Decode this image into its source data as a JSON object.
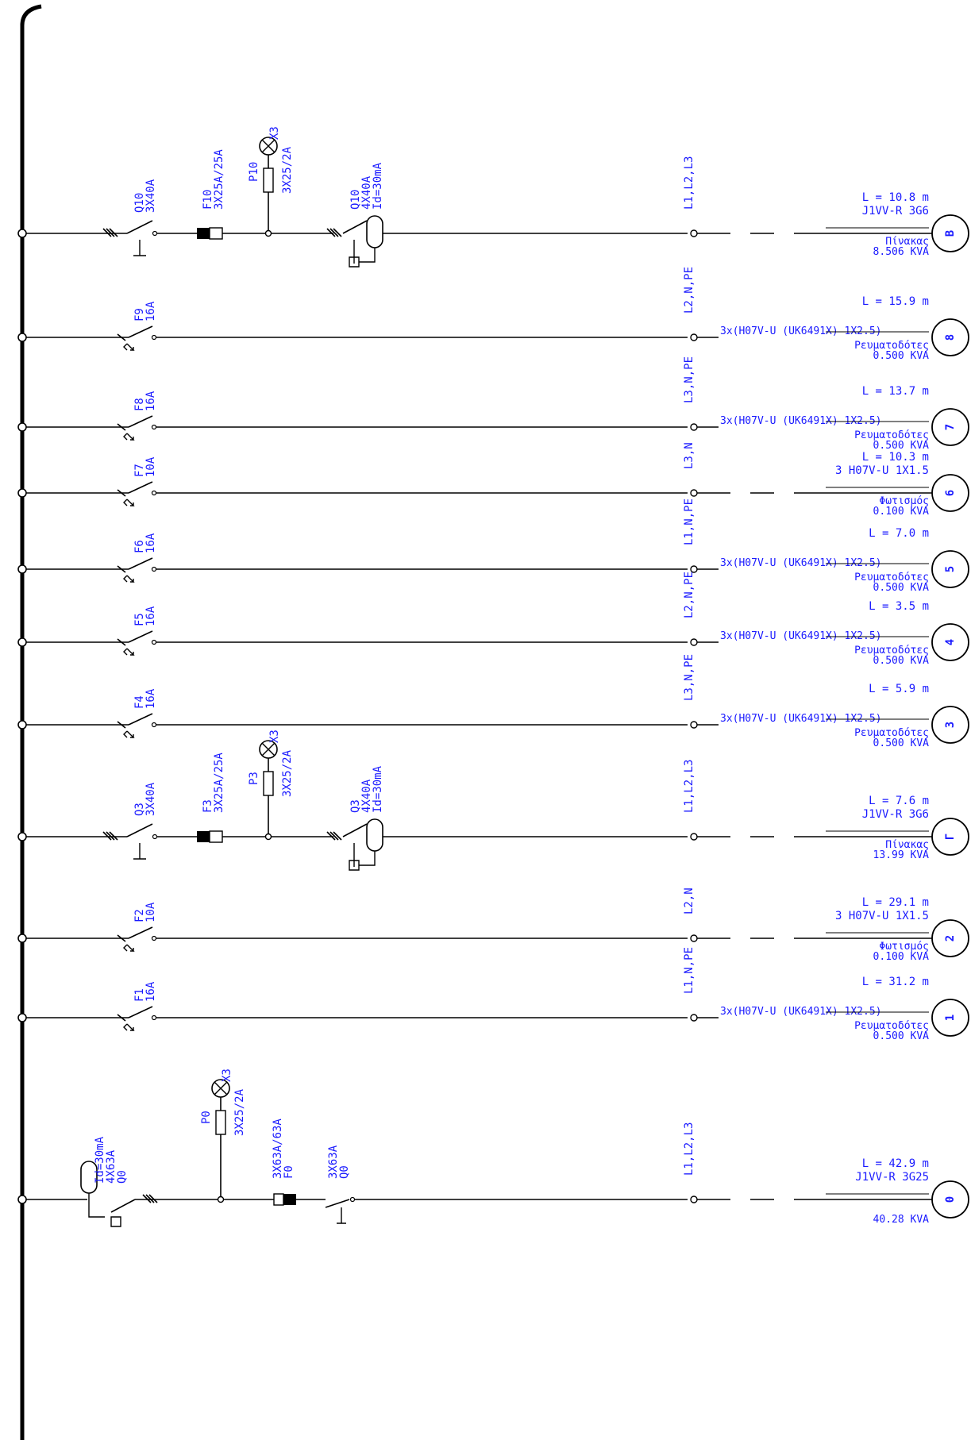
{
  "circuits": [
    {
      "id": "B",
      "type": "main",
      "phase": "L1,L2,L3",
      "breaker": {
        "name": "Q10",
        "rating": "3X40A"
      },
      "fuse": {
        "name": "F10",
        "rating": "3X25A/25A"
      },
      "pilot": {
        "name": "P10",
        "rating": "3X25/2A",
        "lamp": "X3"
      },
      "rcd": {
        "name": "Q10",
        "rating": "4X40A",
        "sens": "Id=30mA"
      },
      "length": "L = 10.8 m",
      "cable": "J1VV-R 3G6",
      "load": "Πίνακας",
      "power": "8.506 KVA"
    },
    {
      "id": "8",
      "type": "branch",
      "phase": "L2,N,PE",
      "breaker": {
        "name": "F9",
        "rating": "16A"
      },
      "length": "L = 15.9 m",
      "cable": "3x(H07V-U (UK6491X) 1X2.5)",
      "load": "Ρευματοδότες",
      "power": "0.500 KVA"
    },
    {
      "id": "7",
      "type": "branch",
      "phase": "L3,N,PE",
      "breaker": {
        "name": "F8",
        "rating": "16A"
      },
      "length": "L = 13.7 m",
      "cable": "3x(H07V-U (UK6491X) 1X2.5)",
      "load": "Ρευματοδότες",
      "power": "0.500 KVA"
    },
    {
      "id": "6",
      "type": "branch",
      "phase": "L3,N",
      "breaker": {
        "name": "F7",
        "rating": "10A"
      },
      "length": "L = 10.3 m",
      "cable": "3 H07V-U 1X1.5",
      "load": "Φωτισμός",
      "power": "0.100 KVA"
    },
    {
      "id": "5",
      "type": "branch",
      "phase": "L1,N,PE",
      "breaker": {
        "name": "F6",
        "rating": "16A"
      },
      "length": "L = 7.0 m",
      "cable": "3x(H07V-U (UK6491X) 1X2.5)",
      "load": "Ρευματοδότες",
      "power": "0.500 KVA"
    },
    {
      "id": "4",
      "type": "branch",
      "phase": "L2,N,PE",
      "breaker": {
        "name": "F5",
        "rating": "16A"
      },
      "length": "L = 3.5 m",
      "cable": "3x(H07V-U (UK6491X) 1X2.5)",
      "load": "Ρευματοδότες",
      "power": "0.500 KVA"
    },
    {
      "id": "3",
      "type": "branch",
      "phase": "L3,N,PE",
      "breaker": {
        "name": "F4",
        "rating": "16A"
      },
      "length": "L = 5.9 m",
      "cable": "3x(H07V-U (UK6491X) 1X2.5)",
      "load": "Ρευματοδότες",
      "power": "0.500 KVA"
    },
    {
      "id": "Γ",
      "type": "main",
      "phase": "L1,L2,L3",
      "breaker": {
        "name": "Q3",
        "rating": "3X40A"
      },
      "fuse": {
        "name": "F3",
        "rating": "3X25A/25A"
      },
      "pilot": {
        "name": "P3",
        "rating": "3X25/2A",
        "lamp": "X3"
      },
      "rcd": {
        "name": "Q3",
        "rating": "4X40A",
        "sens": "Id=30mA"
      },
      "length": "L = 7.6 m",
      "cable": "J1VV-R 3G6",
      "load": "Πίνακας",
      "power": "13.99 KVA"
    },
    {
      "id": "2",
      "type": "branch",
      "phase": "L2,N",
      "breaker": {
        "name": "F2",
        "rating": "10A"
      },
      "length": "L = 29.1 m",
      "cable": "3 H07V-U 1X1.5",
      "load": "Φωτισμός",
      "power": "0.100 KVA"
    },
    {
      "id": "1",
      "type": "branch",
      "phase": "L1,N,PE",
      "breaker": {
        "name": "F1",
        "rating": "16A"
      },
      "length": "L = 31.2 m",
      "cable": "3x(H07V-U (UK6491X) 1X2.5)",
      "load": "Ρευματοδότες",
      "power": "0.500 KVA"
    },
    {
      "id": "0",
      "type": "incomer",
      "phase": "L1,L2,L3",
      "rcd": {
        "name": "Q0",
        "rating": "4X63A",
        "sens": "Id=30mA"
      },
      "pilot": {
        "name": "P0",
        "rating": "3X25/2A",
        "lamp": "X3"
      },
      "fuse": {
        "name": "F0",
        "rating": "3X63A/63A"
      },
      "breaker": {
        "name": "Q0",
        "rating": "3X63A"
      },
      "length": "L = 42.9 m",
      "cable": "J1VV-R 3G25",
      "load": "",
      "power": "40.28 KVA"
    }
  ]
}
